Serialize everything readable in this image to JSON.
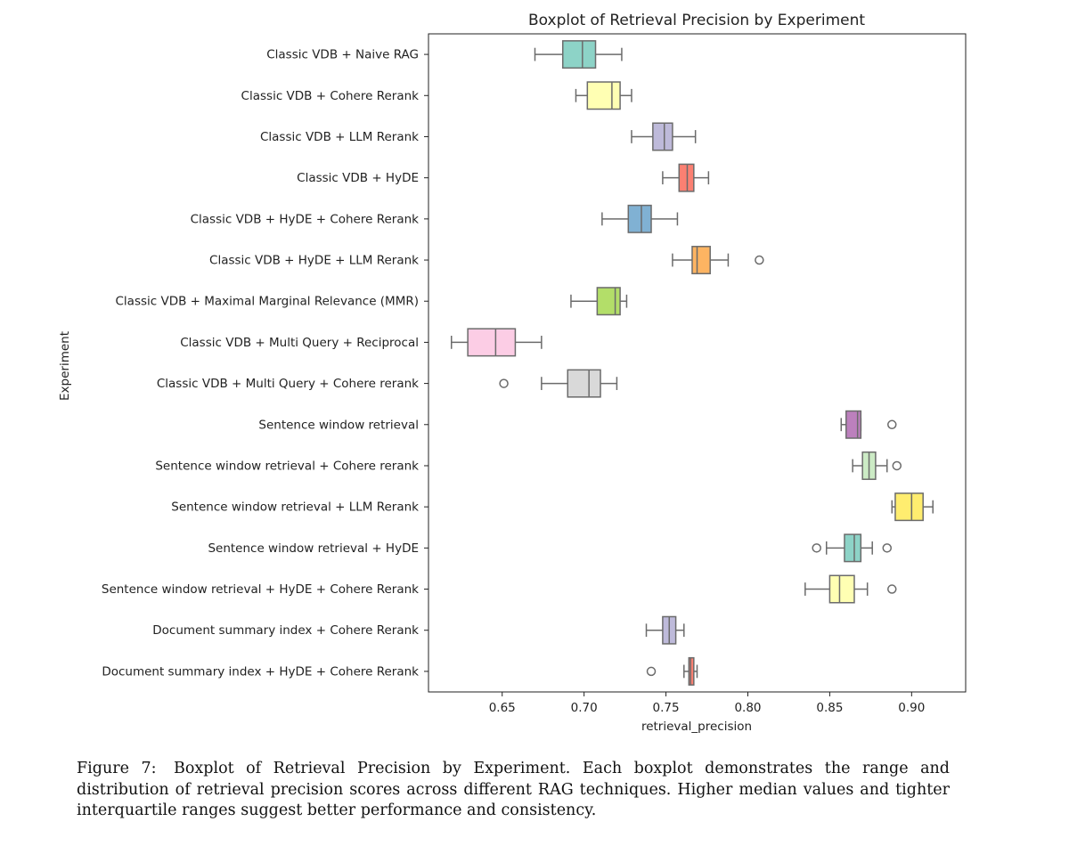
{
  "chart_data": {
    "type": "boxplot",
    "title": "Boxplot of Retrieval Precision by Experiment",
    "xlabel": "retrieval_precision",
    "ylabel": "Experiment",
    "xlim": [
      0.605,
      0.933
    ],
    "xticks": [
      0.65,
      0.7,
      0.75,
      0.8,
      0.85,
      0.9
    ],
    "xtick_labels": [
      "0.65",
      "0.70",
      "0.75",
      "0.80",
      "0.85",
      "0.90"
    ],
    "grid": false,
    "series": [
      {
        "name": "Classic VDB + Naive RAG",
        "color": "#8dd3c7",
        "whisker_low": 0.67,
        "q1": 0.687,
        "median": 0.699,
        "q3": 0.707,
        "whisker_high": 0.723,
        "outliers": []
      },
      {
        "name": "Classic VDB + Cohere Rerank",
        "color": "#ffffb3",
        "whisker_low": 0.695,
        "q1": 0.702,
        "median": 0.717,
        "q3": 0.722,
        "whisker_high": 0.729,
        "outliers": []
      },
      {
        "name": "Classic VDB + LLM Rerank",
        "color": "#bebada",
        "whisker_low": 0.729,
        "q1": 0.742,
        "median": 0.749,
        "q3": 0.754,
        "whisker_high": 0.768,
        "outliers": []
      },
      {
        "name": "Classic VDB + HyDE",
        "color": "#fb8072",
        "whisker_low": 0.748,
        "q1": 0.758,
        "median": 0.763,
        "q3": 0.767,
        "whisker_high": 0.776,
        "outliers": []
      },
      {
        "name": "Classic VDB + HyDE + Cohere Rerank",
        "color": "#80b1d3",
        "whisker_low": 0.711,
        "q1": 0.727,
        "median": 0.735,
        "q3": 0.741,
        "whisker_high": 0.757,
        "outliers": []
      },
      {
        "name": "Classic VDB + HyDE + LLM Rerank",
        "color": "#fdb462",
        "whisker_low": 0.754,
        "q1": 0.766,
        "median": 0.769,
        "q3": 0.777,
        "whisker_high": 0.788,
        "outliers": [
          0.807
        ]
      },
      {
        "name": "Classic VDB + Maximal Marginal Relevance (MMR)",
        "color": "#b3de69",
        "whisker_low": 0.692,
        "q1": 0.708,
        "median": 0.719,
        "q3": 0.722,
        "whisker_high": 0.726,
        "outliers": []
      },
      {
        "name": "Classic VDB + Multi Query + Reciprocal",
        "color": "#fccde5",
        "whisker_low": 0.619,
        "q1": 0.629,
        "median": 0.646,
        "q3": 0.658,
        "whisker_high": 0.674,
        "outliers": []
      },
      {
        "name": "Classic VDB + Multi Query + Cohere rerank",
        "color": "#d9d9d9",
        "whisker_low": 0.674,
        "q1": 0.69,
        "median": 0.703,
        "q3": 0.71,
        "whisker_high": 0.72,
        "outliers": [
          0.651
        ]
      },
      {
        "name": "Sentence window retrieval",
        "color": "#bc80bd",
        "whisker_low": 0.857,
        "q1": 0.86,
        "median": 0.867,
        "q3": 0.869,
        "whisker_high": 0.869,
        "outliers": [
          0.888
        ]
      },
      {
        "name": "Sentence window retrieval + Cohere rerank",
        "color": "#ccebc5",
        "whisker_low": 0.864,
        "q1": 0.87,
        "median": 0.874,
        "q3": 0.878,
        "whisker_high": 0.885,
        "outliers": [
          0.891
        ]
      },
      {
        "name": "Sentence window retrieval + LLM Rerank",
        "color": "#ffed6f",
        "whisker_low": 0.888,
        "q1": 0.89,
        "median": 0.9,
        "q3": 0.907,
        "whisker_high": 0.913,
        "outliers": []
      },
      {
        "name": "Sentence window retrieval + HyDE",
        "color": "#8dd3c7",
        "whisker_low": 0.848,
        "q1": 0.859,
        "median": 0.865,
        "q3": 0.869,
        "whisker_high": 0.876,
        "outliers": [
          0.842,
          0.885
        ]
      },
      {
        "name": "Sentence window retrieval + HyDE + Cohere Rerank",
        "color": "#ffffb3",
        "whisker_low": 0.835,
        "q1": 0.85,
        "median": 0.856,
        "q3": 0.865,
        "whisker_high": 0.873,
        "outliers": [
          0.888
        ]
      },
      {
        "name": "Document summary index + Cohere Rerank",
        "color": "#bebada",
        "whisker_low": 0.738,
        "q1": 0.748,
        "median": 0.752,
        "q3": 0.756,
        "whisker_high": 0.761,
        "outliers": []
      },
      {
        "name": "Document summary index + HyDE + Cohere Rerank",
        "color": "#fb8072",
        "whisker_low": 0.761,
        "q1": 0.764,
        "median": 0.765,
        "q3": 0.767,
        "whisker_high": 0.769,
        "outliers": [
          0.741
        ]
      }
    ]
  },
  "caption": {
    "label": "Figure 7:",
    "text": "Boxplot of Retrieval Precision by Experiment. Each boxplot demonstrates the range and distribution of retrieval precision scores across different RAG techniques. Higher median values and tighter interquartile ranges suggest better performance and consistency."
  }
}
